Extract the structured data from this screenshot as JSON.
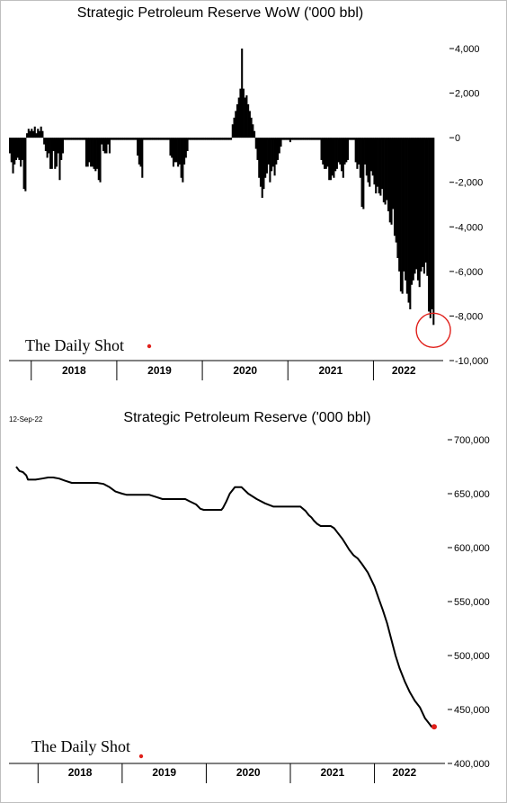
{
  "chart_data": [
    {
      "type": "bar",
      "title": "Strategic Petroleum Reserve WoW ('000 bbl)",
      "xlabel": "",
      "ylabel": "",
      "ylim": [
        -10000,
        4000
      ],
      "yticks": [
        4000,
        2000,
        0,
        -2000,
        -4000,
        -6000,
        -8000,
        -10000
      ],
      "ytick_labels": [
        "4,000",
        "2,000",
        "0",
        "-2,000",
        "-4,000",
        "-6,000",
        "-8,000",
        "-10,000"
      ],
      "years": [
        "2018",
        "2019",
        "2020",
        "2021",
        "2022"
      ],
      "x_start": 2017.74,
      "x_end": 2022.71,
      "grid": false,
      "bar_color": "#000000",
      "highlight_color": "#e0201b",
      "annotation": "red circle around latest weekly change",
      "brand": "The Daily Shot",
      "values": [
        -700,
        -1100,
        -1600,
        -1200,
        -1000,
        -900,
        -1000,
        -1300,
        -1000,
        -2300,
        -2400,
        200,
        400,
        300,
        400,
        300,
        500,
        200,
        400,
        300,
        500,
        300,
        -300,
        -600,
        -900,
        -700,
        -1400,
        -1400,
        -600,
        -1400,
        -1300,
        -700,
        -1900,
        -1000,
        -700,
        -100,
        -100,
        -100,
        -100,
        -100,
        -100,
        -100,
        -100,
        -100,
        -100,
        -100,
        -100,
        -100,
        -100,
        -1300,
        -1300,
        -1100,
        -1300,
        -1300,
        -1400,
        -1500,
        -1400,
        -1900,
        -2000,
        -300,
        -600,
        -700,
        -700,
        -300,
        -700,
        -100,
        -100,
        -100,
        -100,
        -100,
        -100,
        -100,
        -100,
        -100,
        -100,
        -100,
        -100,
        -100,
        -100,
        -100,
        -100,
        -100,
        -800,
        -1200,
        -1300,
        -1800,
        -100,
        -100,
        -100,
        -100,
        -100,
        -100,
        -100,
        -100,
        -100,
        -100,
        -100,
        -100,
        -100,
        -100,
        -100,
        -100,
        -100,
        -800,
        -900,
        -1300,
        -1100,
        -1100,
        -1300,
        -1200,
        -1800,
        -2000,
        -1200,
        -900,
        -600,
        -100,
        -100,
        -100,
        -100,
        -100,
        -100,
        -100,
        -100,
        -100,
        -100,
        -100,
        -100,
        -100,
        -100,
        -100,
        -100,
        -100,
        -100,
        -100,
        -100,
        -100,
        -100,
        -100,
        -100,
        -100,
        -100,
        -100,
        -100,
        600,
        900,
        1200,
        1500,
        1800,
        2200,
        4000,
        2200,
        1800,
        1900,
        1500,
        1200,
        900,
        600,
        300,
        -500,
        -1000,
        -1800,
        -2200,
        -2700,
        -2300,
        -1800,
        -1600,
        -1200,
        -2000,
        -1500,
        -1300,
        -1700,
        -1200,
        -1000,
        -700,
        -400,
        -100,
        -100,
        -100,
        -100,
        -100,
        -200,
        -100,
        -100,
        -100,
        -100,
        -100,
        -100,
        -100,
        -100,
        -100,
        -100,
        -100,
        -100,
        -100,
        -100,
        -100,
        -100,
        -100,
        -100,
        -100,
        -1000,
        -1200,
        -1400,
        -1400,
        -1300,
        -1900,
        -1900,
        -1700,
        -1800,
        -1500,
        -1400,
        -1100,
        -1200,
        -1500,
        -1800,
        -1200,
        -1100,
        -1000,
        -100,
        -100,
        -100,
        -100,
        -1100,
        -1400,
        -1200,
        -1800,
        -3100,
        -3200,
        -1200,
        -1700,
        -2000,
        -2200,
        -1500,
        -1700,
        -2100,
        -2500,
        -2200,
        -2500,
        -2600,
        -2300,
        -2900,
        -3000,
        -2800,
        -3300,
        -3800,
        -3900,
        -3200,
        -4400,
        -4700,
        -5400,
        -6000,
        -6900,
        -7000,
        -6000,
        -6400,
        -7000,
        -7400,
        -7700,
        -6600,
        -6400,
        -6100,
        -5900,
        -6400,
        -6700,
        -6000,
        -5800,
        -6100,
        -5600,
        -6200,
        -7800,
        -8100,
        -7700,
        -8400
      ]
    },
    {
      "type": "line",
      "title": "Strategic Petroleum Reserve ('000 bbl)",
      "date_label": "12-Sep-22",
      "xlabel": "",
      "ylabel": "",
      "ylim": [
        400000,
        700000
      ],
      "yticks": [
        700000,
        650000,
        600000,
        550000,
        500000,
        450000,
        400000
      ],
      "ytick_labels": [
        "700,000",
        "650,000",
        "600,000",
        "550,000",
        "500,000",
        "450,000",
        "400,000"
      ],
      "years": [
        "2018",
        "2019",
        "2020",
        "2021",
        "2022"
      ],
      "x_start": 2017.74,
      "x_end": 2022.71,
      "grid": false,
      "line_color": "#000000",
      "marker_color": "#e0201b",
      "brand": "The Daily Shot",
      "x": [
        2017.74,
        2017.78,
        2017.82,
        2017.86,
        2017.88,
        2017.92,
        2017.97,
        2018.05,
        2018.12,
        2018.18,
        2018.25,
        2018.32,
        2018.4,
        2018.48,
        2018.55,
        2018.62,
        2018.7,
        2018.78,
        2018.85,
        2018.92,
        2019.0,
        2019.05,
        2019.12,
        2019.22,
        2019.32,
        2019.4,
        2019.48,
        2019.52,
        2019.6,
        2019.7,
        2019.75,
        2019.8,
        2019.88,
        2019.93,
        2019.97,
        2020.02,
        2020.06,
        2020.1,
        2020.14,
        2020.18,
        2020.2,
        2020.24,
        2020.28,
        2020.34,
        2020.42,
        2020.5,
        2020.6,
        2020.7,
        2020.8,
        2020.86,
        2020.9,
        2020.95,
        2021.0,
        2021.03,
        2021.12,
        2021.18,
        2021.22,
        2021.25,
        2021.28,
        2021.32,
        2021.36,
        2021.4,
        2021.44,
        2021.48,
        2021.52,
        2021.56,
        2021.62,
        2021.66,
        2021.7,
        2021.75,
        2021.8,
        2021.85,
        2021.92,
        2022.0,
        2022.05,
        2022.1,
        2022.15,
        2022.2,
        2022.25,
        2022.3,
        2022.36,
        2022.42,
        2022.48,
        2022.54,
        2022.6,
        2022.65,
        2022.68,
        2022.71
      ],
      "y": [
        675000,
        671000,
        670000,
        667000,
        663000,
        663000,
        663000,
        664000,
        665000,
        665000,
        664000,
        662000,
        660000,
        660000,
        660000,
        660000,
        660000,
        659000,
        656000,
        652000,
        650000,
        649000,
        649000,
        649000,
        649000,
        647000,
        645000,
        645000,
        645000,
        645000,
        645000,
        643000,
        640000,
        636000,
        635000,
        635000,
        635000,
        635000,
        635000,
        635000,
        637000,
        643000,
        650000,
        656000,
        656000,
        650000,
        645000,
        641000,
        638000,
        638000,
        638000,
        638000,
        638000,
        638000,
        638000,
        634000,
        630000,
        628000,
        625000,
        622000,
        620000,
        620000,
        620000,
        620000,
        618000,
        614000,
        608000,
        603000,
        598000,
        593000,
        590000,
        585000,
        577000,
        564000,
        553000,
        542000,
        530000,
        515000,
        500000,
        488000,
        476000,
        466000,
        458000,
        452000,
        442000,
        437000,
        434000,
        434000
      ],
      "last_point_marker": true
    }
  ]
}
